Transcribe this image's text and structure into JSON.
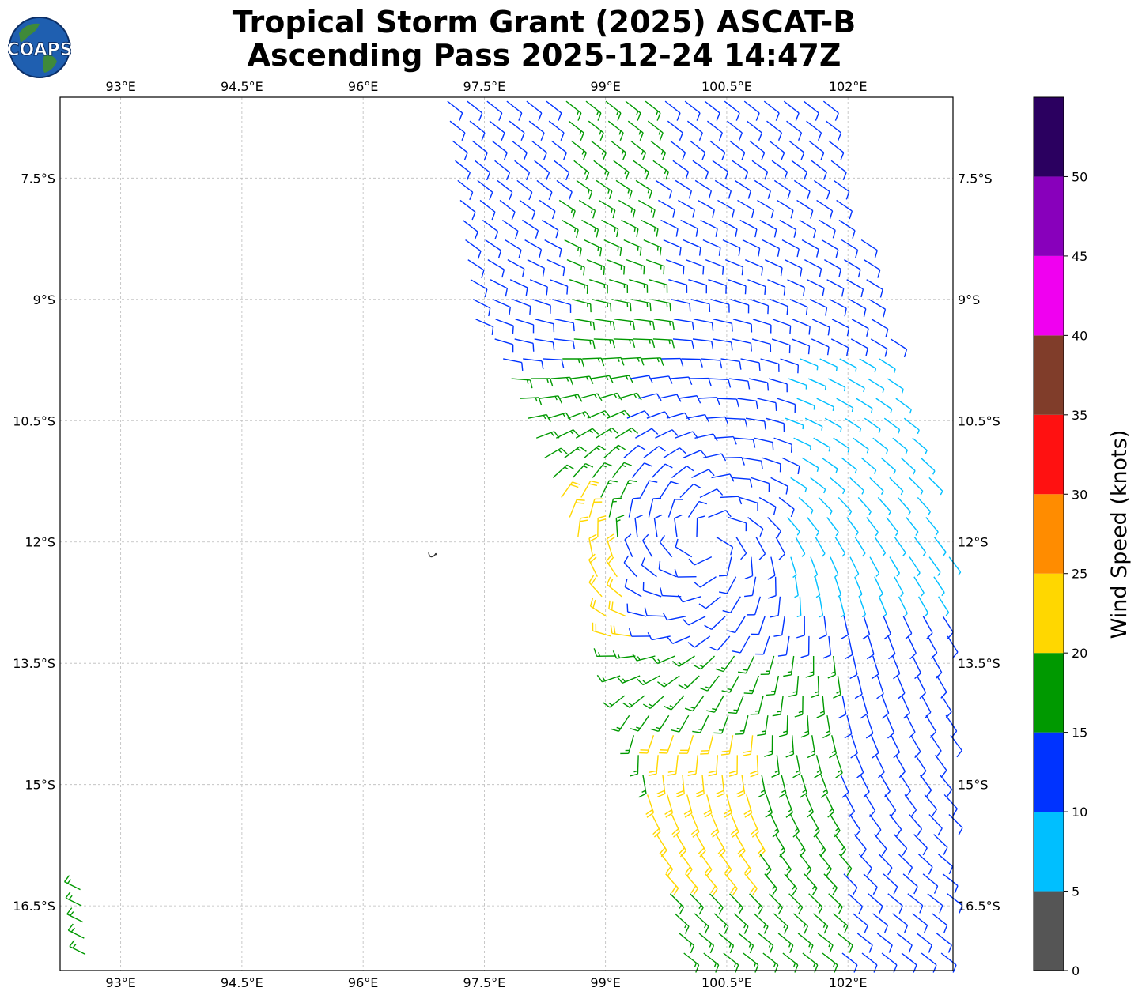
{
  "figure": {
    "title_line1": "Tropical Storm Grant (2025) ASCAT-B",
    "title_line2": "Ascending Pass 2025-12-24 14:47Z",
    "logo_text": "COAPS"
  },
  "map": {
    "lon_range": [
      92.25,
      103.3
    ],
    "lat_range": [
      -17.3,
      -6.5
    ],
    "lon_ticks": [
      93,
      94.5,
      96,
      97.5,
      99,
      100.5,
      102
    ],
    "lon_tick_labels": [
      "93°E",
      "94.5°E",
      "96°E",
      "97.5°E",
      "99°E",
      "100.5°E",
      "102°E"
    ],
    "lat_ticks": [
      -7.5,
      -9,
      -10.5,
      -12,
      -13.5,
      -15,
      -16.5
    ],
    "lat_tick_labels": [
      "7.5°S",
      "9°S",
      "10.5°S",
      "12°S",
      "13.5°S",
      "15°S",
      "16.5°S"
    ],
    "gridlines": true,
    "island": {
      "name": "Cocos (Keeling) Islands outline",
      "lon": 96.85,
      "lat": -12.17
    }
  },
  "colorbar": {
    "label": "Wind Speed (knots)",
    "boundaries": [
      0,
      5,
      10,
      15,
      20,
      25,
      30,
      35,
      40,
      45,
      50,
      55
    ],
    "tick_values": [
      0,
      5,
      10,
      15,
      20,
      25,
      30,
      35,
      40,
      45,
      50
    ],
    "tick_labels": [
      "0",
      "5",
      "10",
      "15",
      "20",
      "25",
      "30",
      "35",
      "40",
      "45",
      "50"
    ],
    "colors": [
      "#555555",
      "#00bfff",
      "#0033ff",
      "#009900",
      "#ffd700",
      "#ff8c00",
      "#ff1111",
      "#803d2a",
      "#f000f0",
      "#8800bb",
      "#2b0060"
    ]
  },
  "chart_data": {
    "type": "wind-barb map",
    "center": {
      "lon": 100.3,
      "lat": -12.0
    },
    "swath": {
      "west_edge_top_lon": 97.1,
      "west_edge_bottom_lon": 99.6,
      "east_edge_top_lon": 101.7,
      "east_edge_bottom_lon": 103.3,
      "top_lat": -6.5,
      "bottom_lat": -17.3
    },
    "speed_bands_knots": {
      "cyan_5_10": "east edge 10-12.5S",
      "blue_10_15": "northern and eastern swath",
      "green_15_20": "western and southern swath",
      "yellow_20_25": "west edge near 11.5-12.5S and south-west near 14.5-16S"
    },
    "extra_barbs": {
      "lon": 92.5,
      "lat_from": -16.3,
      "lat_to": -17.2,
      "speed_knots": 17
    }
  }
}
